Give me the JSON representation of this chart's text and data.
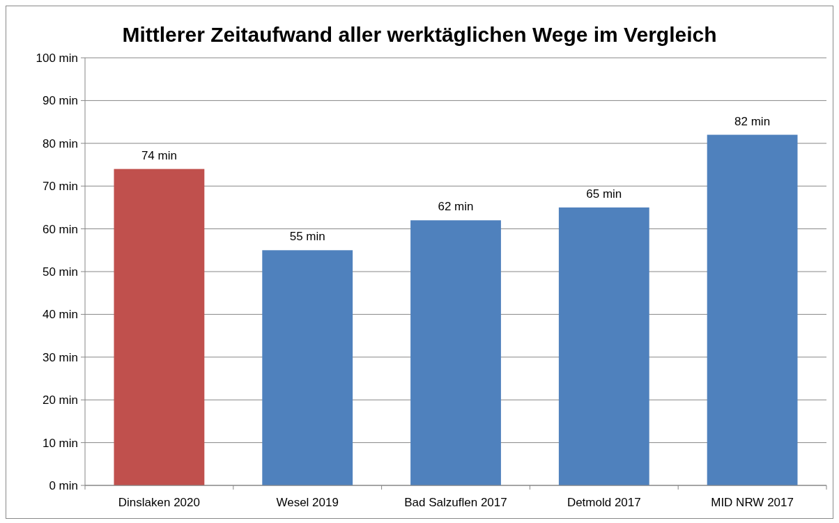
{
  "chart_data": {
    "type": "bar",
    "title": "Mittlerer Zeitaufwand aller werktäglichen Wege im Vergleich",
    "categories": [
      "Dinslaken 2020",
      "Wesel 2019",
      "Bad Salzuflen 2017",
      "Detmold 2017",
      "MID NRW 2017"
    ],
    "values": [
      74,
      55,
      62,
      65,
      82
    ],
    "colors": [
      "#c0504d",
      "#4f81bd",
      "#4f81bd",
      "#4f81bd",
      "#4f81bd"
    ],
    "value_labels": [
      "74 min",
      "55 min",
      "62 min",
      "65 min",
      "82 min"
    ],
    "ylim": [
      0,
      100
    ],
    "yticks": [
      {
        "value": 0,
        "label": "0 min"
      },
      {
        "value": 10,
        "label": "10 min"
      },
      {
        "value": 20,
        "label": "20 min"
      },
      {
        "value": 30,
        "label": "30 min"
      },
      {
        "value": 40,
        "label": "40 min"
      },
      {
        "value": 50,
        "label": "50 min"
      },
      {
        "value": 60,
        "label": "60 min"
      },
      {
        "value": 70,
        "label": "70 min"
      },
      {
        "value": 80,
        "label": "80 min"
      },
      {
        "value": 90,
        "label": "90 min"
      },
      {
        "value": 100,
        "label": "100 min"
      }
    ],
    "grid": "y"
  }
}
